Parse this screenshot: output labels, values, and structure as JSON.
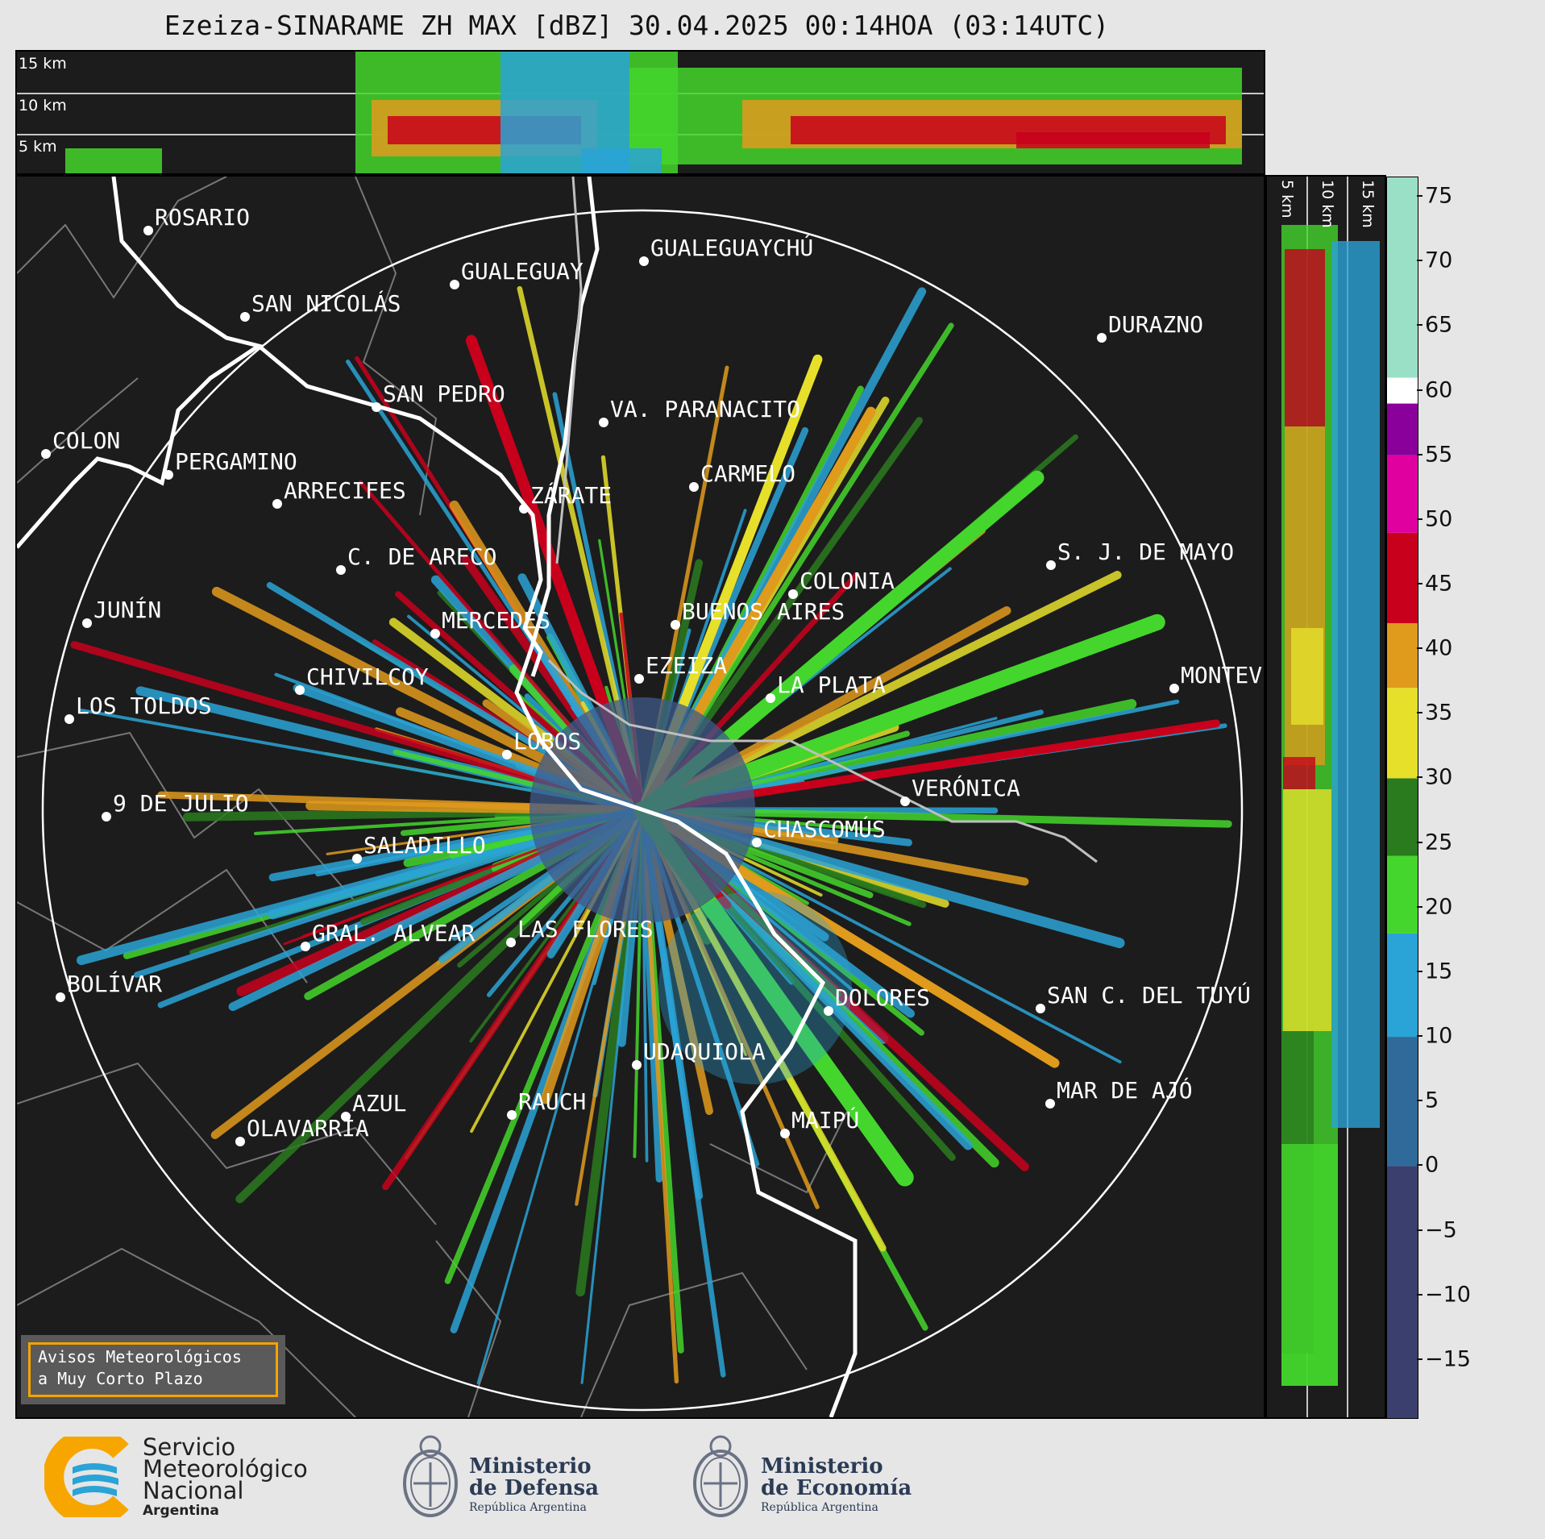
{
  "title": "Ezeiza-SINARAME ZH MAX [dBZ] 30.04.2025 00:14HOA (03:14UTC)",
  "top_panel": {
    "height_labels": [
      "15 km",
      "10 km",
      "5 km"
    ]
  },
  "side_panel": {
    "height_labels": [
      "5 km",
      "10 km",
      "15 km"
    ]
  },
  "colorbar": {
    "ticks": [
      "75",
      "70",
      "65",
      "60",
      "55",
      "50",
      "45",
      "40",
      "35",
      "30",
      "25",
      "20",
      "15",
      "10",
      "5",
      "0",
      "−5",
      "−10",
      "−15"
    ],
    "tick_values": [
      75,
      70,
      65,
      60,
      55,
      50,
      45,
      40,
      35,
      30,
      25,
      20,
      15,
      10,
      5,
      0,
      -5,
      -10,
      -15
    ],
    "range": [
      -19.5,
      76.5
    ],
    "color_stops": [
      {
        "from": -19.5,
        "to": 0,
        "color": "#3b3f6e"
      },
      {
        "from": 0,
        "to": 10,
        "color": "#2f6a9a"
      },
      {
        "from": 10,
        "to": 18,
        "color": "#2aa3d6"
      },
      {
        "from": 18,
        "to": 24,
        "color": "#44d62c"
      },
      {
        "from": 24,
        "to": 30,
        "color": "#2a7a1e"
      },
      {
        "from": 30,
        "to": 37,
        "color": "#e6e02a"
      },
      {
        "from": 37,
        "to": 42,
        "color": "#e09a1c"
      },
      {
        "from": 42,
        "to": 49,
        "color": "#c8001c"
      },
      {
        "from": 49,
        "to": 55,
        "color": "#e000a0"
      },
      {
        "from": 55,
        "to": 59,
        "color": "#8a009a"
      },
      {
        "from": 59,
        "to": 61,
        "color": "#ffffff"
      },
      {
        "from": 61,
        "to": 76.5,
        "color": "#9ae0c6"
      }
    ]
  },
  "cities": [
    {
      "name": "ROSARIO"
    },
    {
      "name": "GUALEGUAYCHÚ"
    },
    {
      "name": "GUALEGUAY"
    },
    {
      "name": "SAN NICOLÁS"
    },
    {
      "name": "DURAZNO"
    },
    {
      "name": "SAN PEDRO"
    },
    {
      "name": "VA. PARANACITO"
    },
    {
      "name": "COLON"
    },
    {
      "name": "PERGAMINO"
    },
    {
      "name": "CARMELO"
    },
    {
      "name": "ARRECIFES"
    },
    {
      "name": "ZÁRATE"
    },
    {
      "name": "C. DE ARECO"
    },
    {
      "name": "S. J. DE MAYO"
    },
    {
      "name": "COLONIA"
    },
    {
      "name": "JUNÍN"
    },
    {
      "name": "BUENOS AIRES"
    },
    {
      "name": "MERCEDES"
    },
    {
      "name": "EZEIZA"
    },
    {
      "name": "MONTEVIDEO"
    },
    {
      "name": "CHIVILCOY"
    },
    {
      "name": "LA PLATA"
    },
    {
      "name": "LOS TOLDOS"
    },
    {
      "name": "LOBOS"
    },
    {
      "name": "VERÓNICA"
    },
    {
      "name": "9 DE JULIO"
    },
    {
      "name": "CHASCOMÚS"
    },
    {
      "name": "SALADILLO"
    },
    {
      "name": "GRAL. ALVEAR"
    },
    {
      "name": "LAS FLORES"
    },
    {
      "name": "BOLÍVAR"
    },
    {
      "name": "DOLORES"
    },
    {
      "name": "SAN C. DEL TUYÚ"
    },
    {
      "name": "UDAQUIOLA"
    },
    {
      "name": "MAR DE AJÓ"
    },
    {
      "name": "AZUL"
    },
    {
      "name": "RAUCH"
    },
    {
      "name": "OLAVARRÍA"
    },
    {
      "name": "MAIPÚ"
    }
  ],
  "avisos": {
    "line1": "Avisos Meteorológicos",
    "line2": "a Muy Corto Plazo"
  },
  "footer": {
    "smn": {
      "line1": "Servicio",
      "line2": "Meteorológico",
      "line3": "Nacional",
      "country": "Argentina"
    },
    "defensa": {
      "line1": "Ministerio",
      "line2": "de Defensa",
      "sub": "República Argentina"
    },
    "economia": {
      "line1": "Ministerio",
      "line2": "de Economía",
      "sub": "República Argentina"
    }
  },
  "colors": {
    "background": "#e6e6e6",
    "panel": "#1c1c1c",
    "coast": "#ffffff",
    "borders": "#808080",
    "smn_yellow": "#f7a600",
    "smn_blue": "#2aa3d6"
  }
}
